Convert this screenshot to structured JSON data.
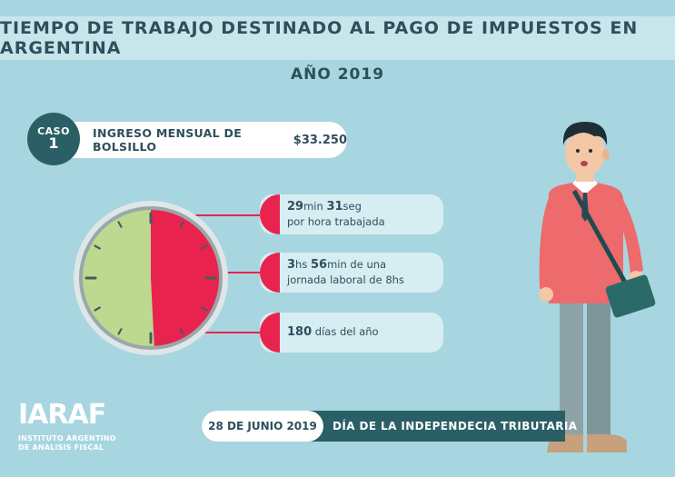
{
  "header": {
    "title": "TIEMPO DE TRABAJO DESTINADO AL PAGO DE IMPUESTOS EN ARGENTINA",
    "year": "AÑO 2019"
  },
  "caso": {
    "word": "CASO",
    "number": "1",
    "label": "INGRESO MENSUAL DE BOLSILLO",
    "amount": "$33.250"
  },
  "clock": {
    "taxed_fraction": 0.492
  },
  "stats": [
    {
      "n1": "29",
      "u1": "min ",
      "n2": "31",
      "u2": "seg",
      "line2": "por hora trabajada"
    },
    {
      "n1": "3",
      "u1": "hs ",
      "n2": "56",
      "u2": "min de una",
      "line2": "jornada laboral de 8hs"
    },
    {
      "n1": "180",
      "u1": " días del año"
    }
  ],
  "footer": {
    "date": "28 DE JUNIO 2019",
    "label": "DÍA DE LA INDEPENDECIA TRIBUTARIA"
  },
  "logo": {
    "mark": "IARAF",
    "line1": "INSTITUTO ARGENTINO",
    "line2": "DE ANALISIS FISCAL"
  },
  "colors": {
    "background": "#a7d6e0",
    "accent_red": "#e8234e",
    "clock_green": "#bcd98f",
    "dark_teal": "#2a5f66"
  }
}
